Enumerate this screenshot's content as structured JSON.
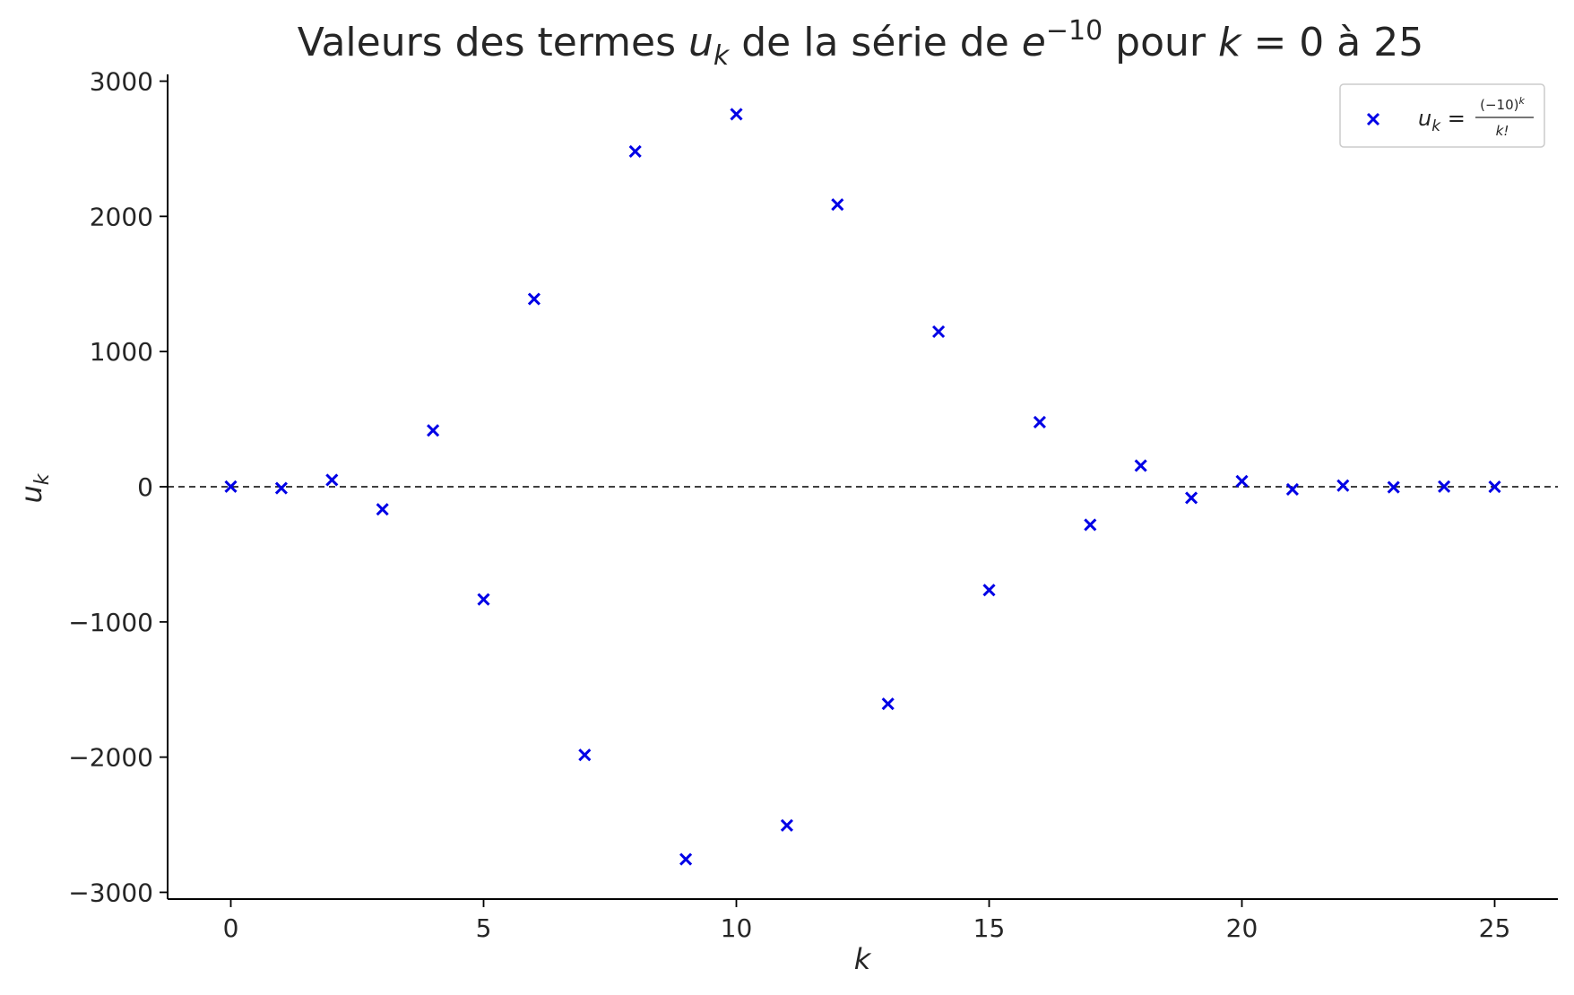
{
  "chart_data": {
    "type": "scatter",
    "title_parts": {
      "a": "Valeurs des termes ",
      "u": "u",
      "k_sub": "k",
      "b": " de la série de ",
      "e": "e",
      "exp": "−10",
      "c": " pour ",
      "k": "k",
      "d": " = 0 à 25"
    },
    "xlabel": "k",
    "ylabel_base": "u",
    "ylabel_sub": "k",
    "xlim": [
      -1.25,
      26.25
    ],
    "ylim": [
      -3050,
      3050
    ],
    "xticks": [
      0,
      5,
      10,
      15,
      20,
      25
    ],
    "xtick_labels": [
      "0",
      "5",
      "10",
      "15",
      "20",
      "25"
    ],
    "yticks": [
      -3000,
      -2000,
      -1000,
      0,
      1000,
      2000,
      3000
    ],
    "ytick_labels": [
      "−3000",
      "−2000",
      "−1000",
      "0",
      "1000",
      "2000",
      "3000"
    ],
    "reference_line": {
      "y": 0,
      "style": "dashed",
      "color": "#000000"
    },
    "legend": {
      "placement": "top-right",
      "parts": {
        "u": "u",
        "k_sub": "k",
        "eq": " = ",
        "num": "(−10)",
        "num_exp": "k",
        "den": "k!"
      }
    },
    "marker": {
      "symbol": "x",
      "color": "#0000e6"
    },
    "series": [
      {
        "x": [
          0,
          1,
          2,
          3,
          4,
          5,
          6,
          7,
          8,
          9,
          10,
          11,
          12,
          13,
          14,
          15,
          16,
          17,
          18,
          19,
          20,
          21,
          22,
          23,
          24,
          25
        ],
        "values": [
          1,
          -10,
          50,
          -166.67,
          416.67,
          -833.33,
          1388.89,
          -1984.13,
          2480.16,
          -2755.73,
          2755.73,
          -2505.21,
          2087.68,
          -1605.9,
          1147.07,
          -764.72,
          477.95,
          -281.14,
          156.19,
          -82.2,
          41.1,
          -19.57,
          8.9,
          -3.87,
          1.61,
          -0.64
        ]
      }
    ]
  }
}
